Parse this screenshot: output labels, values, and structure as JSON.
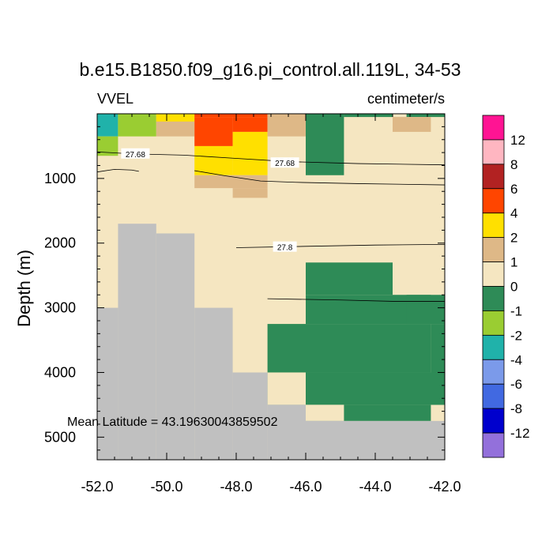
{
  "chart_data": {
    "type": "heatmap",
    "title": "b.e15.B1850.f09_g16.pi_control.all.119L, 34-53",
    "left_label": "VVEL",
    "right_label": "centimeter/s",
    "ylabel": "Depth (m)",
    "xlim": [
      -52.0,
      -42.0
    ],
    "ylim": [
      5350,
      0
    ],
    "x_ticks": [
      "-52.0",
      "-50.0",
      "-48.0",
      "-46.0",
      "-44.0",
      "-42.0"
    ],
    "y_ticks": [
      "1000",
      "2000",
      "3000",
      "4000",
      "5000"
    ],
    "annotation": "Mean Latitude = 43.19630043859502",
    "land_color": "#c0c0c0",
    "colorbar": {
      "labels": [
        "12",
        "8",
        "6",
        "4",
        "2",
        "1",
        "0",
        "-1",
        "-2",
        "-4",
        "-6",
        "-8",
        "-12"
      ],
      "colors": [
        "#ff1493",
        "#ffb6c1",
        "#b22222",
        "#ff4500",
        "#ffe000",
        "#deb887",
        "#f5e6c1",
        "#2e8b57",
        "#9acd32",
        "#20b2aa",
        "#7b9aea",
        "#4169e1",
        "#0000cd",
        "#9370db"
      ]
    },
    "cells": [
      {
        "x0": -52.0,
        "x1": -42.0,
        "d0": 0,
        "d1": 5350,
        "c": "#f5e6c1"
      },
      {
        "x0": -52.0,
        "x1": -51.4,
        "d0": 0,
        "d1": 350,
        "c": "#20b2aa"
      },
      {
        "x0": -52.0,
        "x1": -51.4,
        "d0": 350,
        "d1": 650,
        "c": "#9acd32"
      },
      {
        "x0": -51.4,
        "x1": -50.3,
        "d0": 0,
        "d1": 350,
        "c": "#9acd32"
      },
      {
        "x0": -50.3,
        "x1": -49.2,
        "d0": 0,
        "d1": 100,
        "c": "#deb887"
      },
      {
        "x0": -50.3,
        "x1": -49.2,
        "d0": 100,
        "d1": 350,
        "c": "#deb887"
      },
      {
        "x0": -50.3,
        "x1": -49.2,
        "d0": 0,
        "d1": 120,
        "c": "#ffe000"
      },
      {
        "x0": -49.2,
        "x1": -47.1,
        "d0": 0,
        "d1": 50,
        "c": "#ff4500"
      },
      {
        "x0": -49.2,
        "x1": -48.1,
        "d0": 50,
        "d1": 500,
        "c": "#ff4500"
      },
      {
        "x0": -48.1,
        "x1": -47.1,
        "d0": 50,
        "d1": 280,
        "c": "#ff4500"
      },
      {
        "x0": -48.1,
        "x1": -47.1,
        "d0": 280,
        "d1": 950,
        "c": "#ffe000"
      },
      {
        "x0": -49.2,
        "x1": -48.1,
        "d0": 500,
        "d1": 950,
        "c": "#ffe000"
      },
      {
        "x0": -49.2,
        "x1": -47.1,
        "d0": 950,
        "d1": 1150,
        "c": "#deb887"
      },
      {
        "x0": -48.1,
        "x1": -47.1,
        "d0": 1150,
        "d1": 1300,
        "c": "#deb887"
      },
      {
        "x0": -47.1,
        "x1": -46.0,
        "d0": 0,
        "d1": 350,
        "c": "#deb887"
      },
      {
        "x0": -46.0,
        "x1": -44.9,
        "d0": 0,
        "d1": 950,
        "c": "#2e8b57"
      },
      {
        "x0": -43.1,
        "x1": -42.0,
        "d0": 0,
        "d1": 50,
        "c": "#2e8b57"
      },
      {
        "x0": -44.9,
        "x1": -43.5,
        "d0": 0,
        "d1": 50,
        "c": "#2e8b57"
      },
      {
        "x0": -43.5,
        "x1": -42.4,
        "d0": 50,
        "d1": 280,
        "c": "#deb887"
      },
      {
        "x0": -46.0,
        "x1": -43.5,
        "d0": 2300,
        "d1": 2800,
        "c": "#2e8b57"
      },
      {
        "x0": -46.0,
        "x1": -42.4,
        "d0": 2800,
        "d1": 3250,
        "c": "#2e8b57"
      },
      {
        "x0": -47.1,
        "x1": -42.4,
        "d0": 3250,
        "d1": 4000,
        "c": "#2e8b57"
      },
      {
        "x0": -43.1,
        "x1": -42.0,
        "d0": 2800,
        "d1": 3250,
        "c": "#2e8b57"
      },
      {
        "x0": -42.4,
        "x1": -42.0,
        "d0": 3250,
        "d1": 4500,
        "c": "#2e8b57"
      },
      {
        "x0": -47.1,
        "x1": -42.0,
        "d0": 4000,
        "d1": 4500,
        "c": "#2e8b57"
      },
      {
        "x0": -47.1,
        "x1": -46.0,
        "d0": 4000,
        "d1": 4500,
        "c": "#f5e6c1"
      },
      {
        "x0": -46.0,
        "x1": -42.4,
        "d0": 4500,
        "d1": 4750,
        "c": "#2e8b57"
      },
      {
        "x0": -46.0,
        "x1": -44.9,
        "d0": 4500,
        "d1": 4750,
        "c": "#f5e6c1"
      }
    ],
    "land": [
      {
        "x0": -52.0,
        "x1": -51.4,
        "d0": 3000,
        "d1": 5350
      },
      {
        "x0": -51.4,
        "x1": -50.3,
        "d0": 1700,
        "d1": 5350
      },
      {
        "x0": -50.3,
        "x1": -49.2,
        "d0": 1850,
        "d1": 5350
      },
      {
        "x0": -49.2,
        "x1": -48.1,
        "d0": 3000,
        "d1": 5350
      },
      {
        "x0": -48.1,
        "x1": -47.1,
        "d0": 4000,
        "d1": 5350
      },
      {
        "x0": -47.1,
        "x1": -46.0,
        "d0": 4500,
        "d1": 5350
      },
      {
        "x0": -46.0,
        "x1": -42.0,
        "d0": 4750,
        "d1": 5350
      }
    ],
    "contours": [
      {
        "label": "27.68",
        "label_at": [
          -50.9,
          620
        ],
        "points": [
          [
            -52.0,
            590
          ],
          [
            -51.0,
            620
          ],
          [
            -49.5,
            640
          ],
          [
            -48.0,
            690
          ],
          [
            -46.5,
            740
          ],
          [
            -44.5,
            770
          ],
          [
            -42.0,
            790
          ]
        ]
      },
      {
        "label": "27.68",
        "label_at": [
          -46.6,
          760
        ],
        "points": [
          [
            -49.2,
            880
          ],
          [
            -48.3,
            960
          ],
          [
            -47.3,
            1040
          ],
          [
            -46.3,
            1060
          ],
          [
            -44.5,
            1080
          ],
          [
            -42.0,
            1100
          ]
        ]
      },
      {
        "label": "",
        "label_at": null,
        "points": [
          [
            -52.0,
            900
          ],
          [
            -51.5,
            860
          ],
          [
            -51.0,
            870
          ],
          [
            -50.8,
            890
          ]
        ]
      },
      {
        "label": "27.8",
        "label_at": [
          -46.6,
          2060
        ],
        "points": [
          [
            -48.0,
            2070
          ],
          [
            -46.0,
            2050
          ],
          [
            -44.0,
            2030
          ],
          [
            -42.0,
            2020
          ]
        ]
      },
      {
        "label": "",
        "label_at": null,
        "points": [
          [
            -47.1,
            2860
          ],
          [
            -45.0,
            2880
          ],
          [
            -43.5,
            2900
          ],
          [
            -42.0,
            2900
          ]
        ]
      }
    ]
  }
}
